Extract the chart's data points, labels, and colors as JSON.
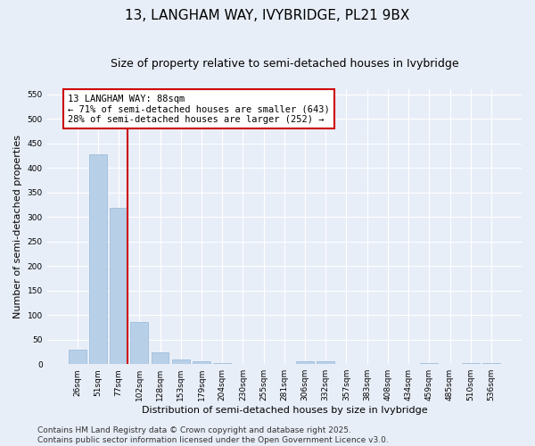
{
  "title": "13, LANGHAM WAY, IVYBRIDGE, PL21 9BX",
  "subtitle": "Size of property relative to semi-detached houses in Ivybridge",
  "xlabel": "Distribution of semi-detached houses by size in Ivybridge",
  "ylabel": "Number of semi-detached properties",
  "categories": [
    "26sqm",
    "51sqm",
    "77sqm",
    "102sqm",
    "128sqm",
    "153sqm",
    "179sqm",
    "204sqm",
    "230sqm",
    "255sqm",
    "281sqm",
    "306sqm",
    "332sqm",
    "357sqm",
    "383sqm",
    "408sqm",
    "434sqm",
    "459sqm",
    "485sqm",
    "510sqm",
    "536sqm"
  ],
  "values": [
    30,
    428,
    318,
    86,
    24,
    10,
    5,
    2,
    0,
    0,
    0,
    5,
    5,
    0,
    0,
    0,
    0,
    3,
    0,
    3,
    3
  ],
  "bar_color": "#b8cfe8",
  "bar_edge_color": "#93b8d8",
  "vline_color": "#cc0000",
  "annotation_line1": "13 LANGHAM WAY: 88sqm",
  "annotation_line2": "← 71% of semi-detached houses are smaller (643)",
  "annotation_line3": "28% of semi-detached houses are larger (252) →",
  "annotation_box_color": "#ffffff",
  "annotation_box_edge": "#cc0000",
  "ylim": [
    0,
    560
  ],
  "yticks": [
    0,
    50,
    100,
    150,
    200,
    250,
    300,
    350,
    400,
    450,
    500,
    550
  ],
  "footer_text": "Contains HM Land Registry data © Crown copyright and database right 2025.\nContains public sector information licensed under the Open Government Licence v3.0.",
  "bg_color": "#e8eef8",
  "grid_color": "#ffffff",
  "title_fontsize": 11,
  "subtitle_fontsize": 9,
  "label_fontsize": 8,
  "tick_fontsize": 6.5,
  "annotation_fontsize": 7.5,
  "footer_fontsize": 6.5
}
